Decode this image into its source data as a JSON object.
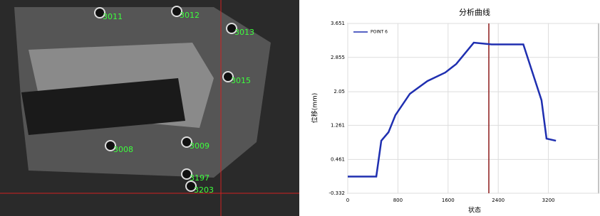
{
  "image": {
    "labels": [
      "3011",
      "3012",
      "3013",
      "3015",
      "3008",
      "3009",
      "3197",
      "3203"
    ]
  },
  "chart_data": {
    "type": "line",
    "title": "分析曲线",
    "x_label": "状态",
    "y_label": "位移(mm)",
    "xlim": [
      0,
      4000
    ],
    "xticks": [
      0,
      800,
      1600,
      2400,
      3200
    ],
    "ylim": [
      -0.332,
      3.651
    ],
    "yticks": [
      -0.332,
      0.461,
      1.261,
      2.05,
      2.855,
      3.651
    ],
    "grid": true,
    "legend": "upper-left",
    "marker_x": 2250,
    "marker_color": "#8b1a1a",
    "series": [
      {
        "name": "POINT 6",
        "color": "#1f2fb0",
        "x": [
          0,
          455,
          535,
          650,
          760,
          990,
          1270,
          1555,
          1730,
          2010,
          2295,
          2800,
          3090,
          3170,
          3320
        ],
        "values": [
          0.06,
          0.06,
          0.9,
          1.1,
          1.5,
          2.0,
          2.3,
          2.5,
          2.7,
          3.2,
          3.16,
          3.16,
          1.85,
          0.95,
          0.9
        ]
      }
    ]
  }
}
